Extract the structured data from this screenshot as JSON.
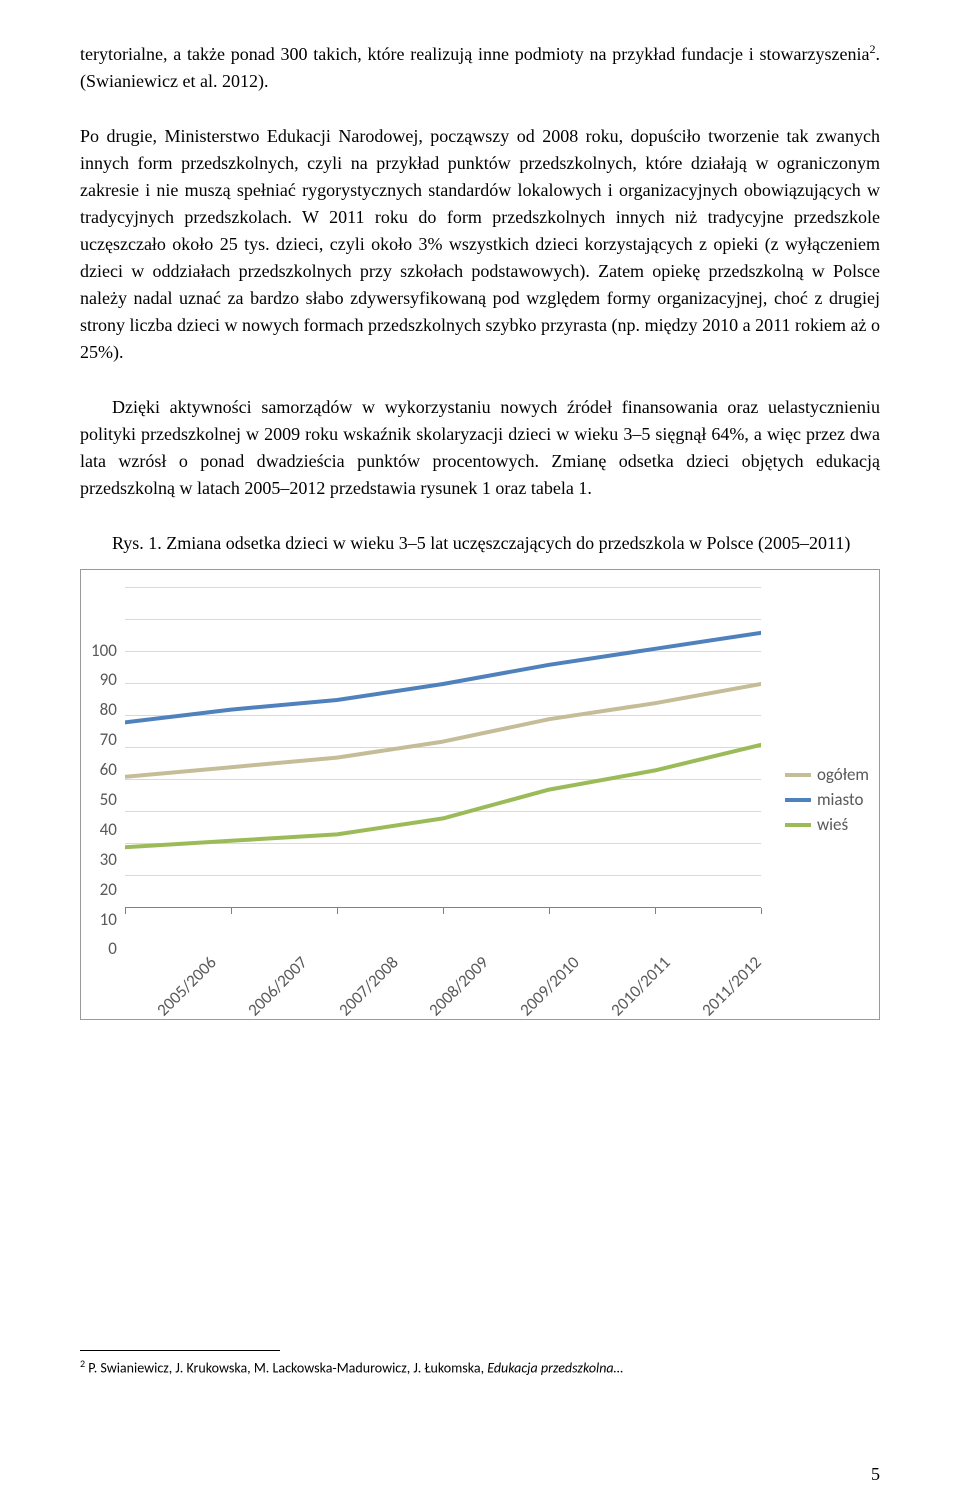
{
  "paragraphs": {
    "p1_a": "terytorialne, a także ponad 300 takich, które realizują inne podmioty na przykład fundacje i stowarzyszenia",
    "p1_sup": "2",
    "p1_b": ". (Swianiewicz et al. 2012).",
    "p2": "Po drugie, Ministerstwo Edukacji Narodowej, począwszy od 2008 roku, dopuściło tworzenie tak zwanych innych form przedszkolnych, czyli na przykład punktów przedszkolnych, które działają w ograniczonym zakresie i nie muszą spełniać rygorystycznych standardów lokalowych i organizacyjnych obowiązujących w tradycyjnych przedszkolach. W 2011 roku do form przedszkolnych innych niż tradycyjne przedszkole uczęszczało około 25 tys. dzieci, czyli około 3% wszystkich dzieci korzystających z opieki (z wyłączeniem dzieci w oddziałach przedszkolnych przy szkołach podstawowych). Zatem opiekę przedszkolną w Polsce należy nadal uznać za bardzo słabo zdywersyfikowaną pod względem formy organizacyjnej, choć z drugiej strony liczba dzieci w nowych formach przedszkolnych szybko przyrasta (np. między 2010 a 2011 rokiem aż o 25%).",
    "p3": "Dzięki aktywności samorządów w wykorzystaniu nowych źródeł finansowania oraz uelastycznieniu polityki przedszkolnej w 2009 roku wskaźnik skolaryzacji dzieci w wieku 3–5 sięgnął 64%, a więc przez dwa lata wzrósł o ponad dwadzieścia punktów procentowych. Zmianę odsetka dzieci objętych edukacją przedszkolną w latach 2005–2012 przedstawia rysunek 1 oraz tabela 1.",
    "fig_caption": "Rys. 1. Zmiana odsetka dzieci w wieku 3–5 lat uczęszczających do przedszkola w Polsce (2005–2011)"
  },
  "chart": {
    "type": "line",
    "y_ticks": [
      "100",
      "90",
      "80",
      "70",
      "60",
      "50",
      "40",
      "30",
      "20",
      "10",
      "0"
    ],
    "ylim": [
      0,
      100
    ],
    "grid_color": "#d9d9d9",
    "axis_color": "#808080",
    "text_color": "#595959",
    "line_width": 4,
    "categories": [
      "2005/2006",
      "2006/2007",
      "2007/2008",
      "2008/2009",
      "2009/2010",
      "2010/2011",
      "2011/2012"
    ],
    "series": [
      {
        "name": "ogółem",
        "label": "ogółem",
        "color": "#c4bd97",
        "values": [
          41,
          44,
          47,
          52,
          59,
          64,
          70
        ]
      },
      {
        "name": "miasto",
        "label": "miasto",
        "color": "#4f81bd",
        "values": [
          58,
          62,
          65,
          70,
          76,
          81,
          86
        ]
      },
      {
        "name": "wieś",
        "label": "wieś",
        "color": "#9bbb59",
        "values": [
          19,
          21,
          23,
          28,
          37,
          43,
          51
        ]
      }
    ]
  },
  "footnote": {
    "sup": "2",
    "text_a": " P. Swianiewicz, J. Krukowska, M. Lackowska-Madurowicz, J. Łukomska, ",
    "text_italic": "Edukacja przedszkolna…"
  },
  "page_number": "5"
}
